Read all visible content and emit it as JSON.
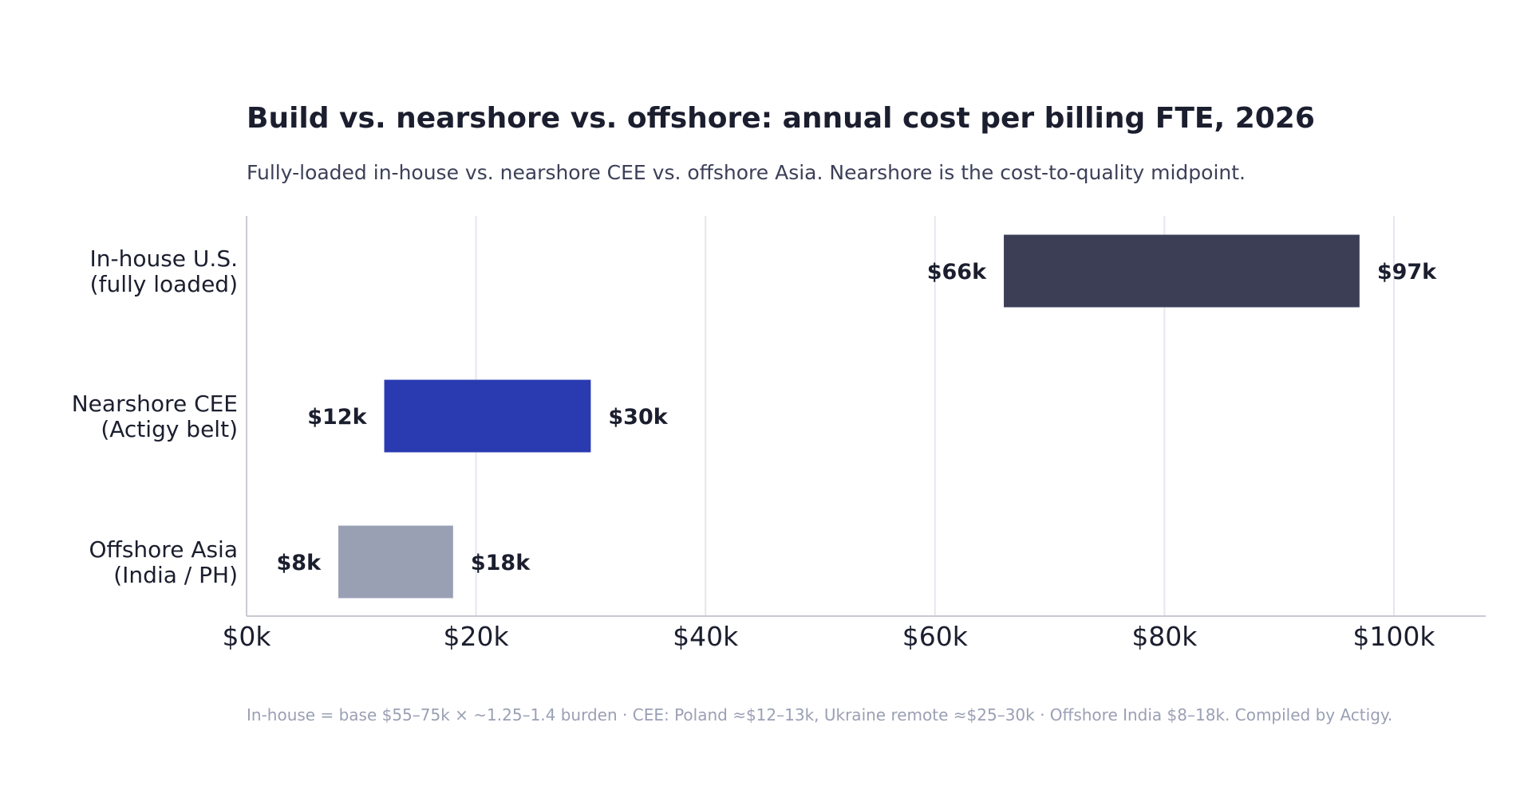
{
  "title": "Build vs. nearshore vs. offshore: annual cost per billing FTE, 2026",
  "subtitle": "Fully-loaded in-house vs. nearshore CEE vs. offshore Asia. Nearshore is the cost-to-quality midpoint.",
  "footnote": "In-house = base $55–75k × ~1.25–1.4 burden · CEE: Poland ≈$12–13k, Ukraine remote ≈$25–30k · Offshore India $8–18k. Compiled by Actigy.",
  "chart_data": {
    "type": "bar",
    "orientation": "horizontal",
    "subtype": "range",
    "categories": [
      [
        "In-house U.S.",
        "(fully loaded)"
      ],
      [
        "Nearshore CEE",
        "(Actigy belt)"
      ],
      [
        "Offshore Asia",
        "(India / PH)"
      ]
    ],
    "ranges": [
      {
        "low": 66,
        "high": 97,
        "low_label": "$66k",
        "high_label": "$97k",
        "color": "#3b3e55"
      },
      {
        "low": 12,
        "high": 30,
        "low_label": "$12k",
        "high_label": "$30k",
        "color": "#2a3ab1"
      },
      {
        "low": 8,
        "high": 18,
        "low_label": "$8k",
        "high_label": "$18k",
        "color": "#9aa0b4"
      }
    ],
    "xlim": [
      0,
      108
    ],
    "xticks": [
      0,
      20,
      40,
      60,
      80,
      100
    ],
    "xtick_labels": [
      "$0k",
      "$20k",
      "$40k",
      "$60k",
      "$80k",
      "$100k"
    ],
    "grid": "x",
    "xlabel": "",
    "ylabel": ""
  }
}
